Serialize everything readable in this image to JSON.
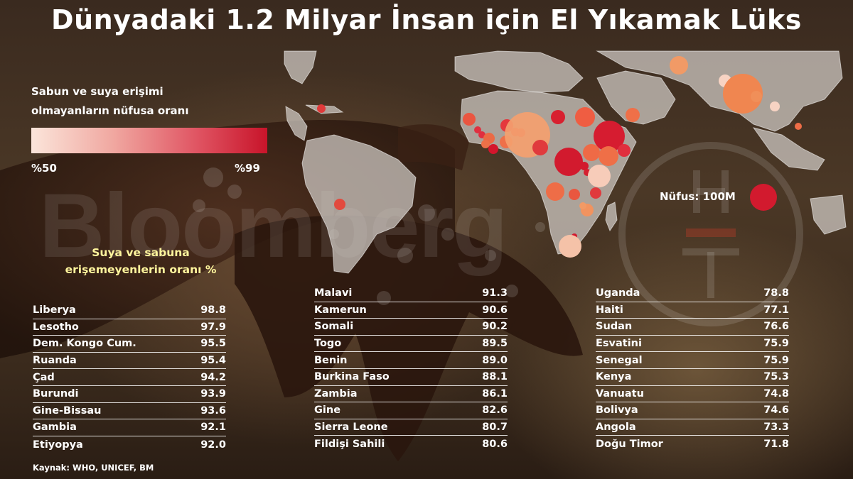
{
  "title": "Dünyadaki 1.2 Milyar İnsan için El Yıkamak Lüks",
  "legend": {
    "title": "Sabun ve suya erişimi olmayanların nüfusa oranı",
    "min_label": "%50",
    "max_label": "%99",
    "colors": [
      "#fbe5da",
      "#c8142a"
    ]
  },
  "bubble_legend": {
    "label": "Nüfus: 100M"
  },
  "watermark": "Bloomberg",
  "table_heading": "Suya ve sabuna erişemeyenlerin oranı %",
  "columns": [
    [
      {
        "country": "Liberya",
        "value": "98.8"
      },
      {
        "country": "Lesotho",
        "value": "97.9"
      },
      {
        "country": "Dem. Kongo Cum.",
        "value": "95.5"
      },
      {
        "country": "Ruanda",
        "value": "95.4"
      },
      {
        "country": "Çad",
        "value": "94.2"
      },
      {
        "country": "Burundi",
        "value": "93.9"
      },
      {
        "country": "Gine-Bissau",
        "value": "93.6"
      },
      {
        "country": "Gambia",
        "value": "92.1"
      },
      {
        "country": "Etiyopya",
        "value": "92.0"
      }
    ],
    [
      {
        "country": "Malavi",
        "value": "91.3"
      },
      {
        "country": "Kamerun",
        "value": "90.6"
      },
      {
        "country": "Somali",
        "value": "90.2"
      },
      {
        "country": "Togo",
        "value": "89.5"
      },
      {
        "country": "Benin",
        "value": "89.0"
      },
      {
        "country": "Burkina Faso",
        "value": "88.1"
      },
      {
        "country": "Zambia",
        "value": "86.1"
      },
      {
        "country": "Gine",
        "value": "82.6"
      },
      {
        "country": "Sierra Leone",
        "value": "80.7"
      },
      {
        "country": "Fildişi Sahili",
        "value": "80.6"
      }
    ],
    [
      {
        "country": "Uganda",
        "value": "78.8"
      },
      {
        "country": "Haiti",
        "value": "77.1"
      },
      {
        "country": "Sudan",
        "value": "76.6"
      },
      {
        "country": "Esvatini",
        "value": "75.9"
      },
      {
        "country": "Senegal",
        "value": "75.9"
      },
      {
        "country": "Kenya",
        "value": "75.3"
      },
      {
        "country": "Vanuatu",
        "value": "74.8"
      },
      {
        "country": "Bolivya",
        "value": "74.6"
      },
      {
        "country": "Angola",
        "value": "73.3"
      },
      {
        "country": "Doğu Timor",
        "value": "71.8"
      }
    ]
  ],
  "source": "Kaynak: WHO, UNICEF, BM"
}
